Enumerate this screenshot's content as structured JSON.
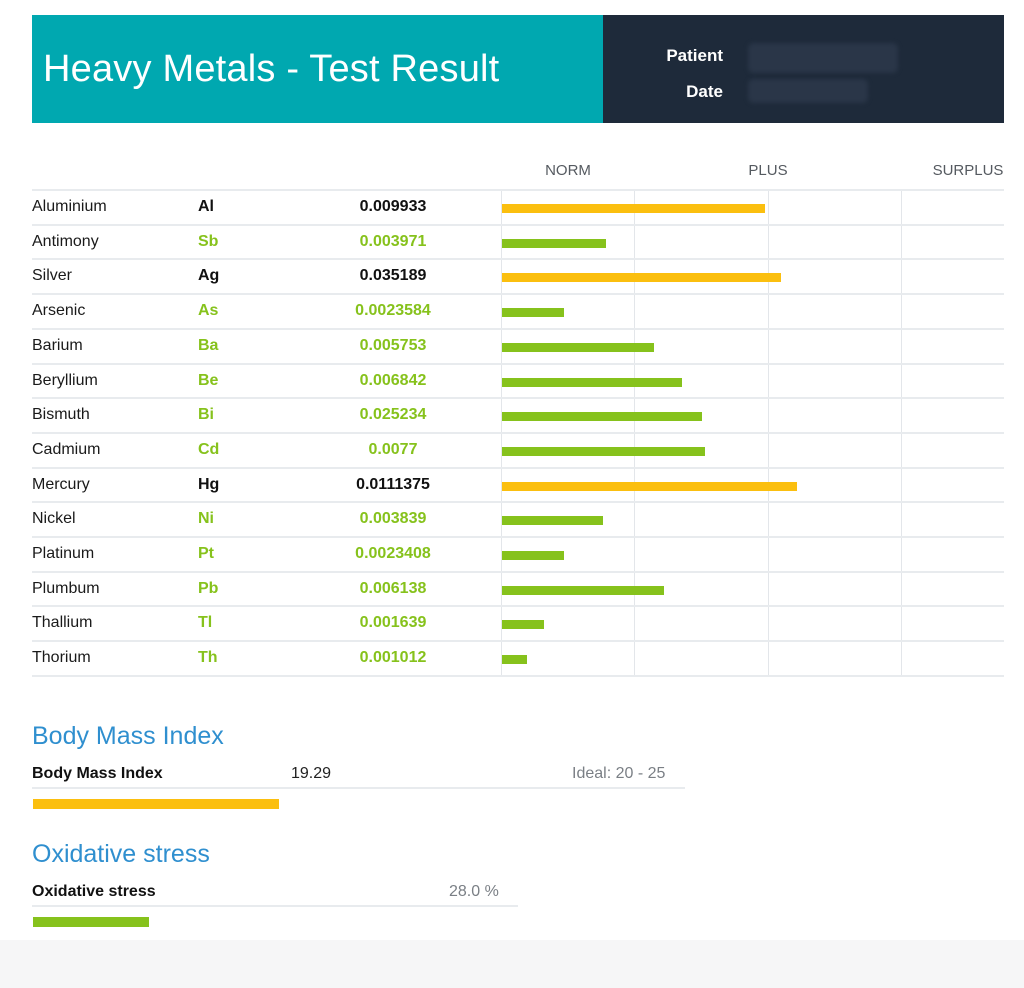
{
  "header": {
    "title": "Heavy Metals - Test Result",
    "patient_label": "Patient",
    "date_label": "Date",
    "colors": {
      "title_band": "#00a8b0",
      "info_band": "#1e2a3a"
    }
  },
  "scale": {
    "norm": "NORM",
    "plus": "PLUS",
    "surplus": "SURPLUS"
  },
  "colors": {
    "elevated": "#fbbf0f",
    "normal": "#86c21c",
    "section_heading": "#2f8fcf"
  },
  "metals": [
    {
      "name": "Aluminium",
      "symbol": "Al",
      "value": "0.009933",
      "status": "elevated",
      "level": 0.395
    },
    {
      "name": "Antimony",
      "symbol": "Sb",
      "value": "0.003971",
      "status": "normal",
      "level": 0.156
    },
    {
      "name": "Silver",
      "symbol": "Ag",
      "value": "0.035189",
      "status": "elevated",
      "level": 0.419
    },
    {
      "name": "Arsenic",
      "symbol": "As",
      "value": "0.0023584",
      "status": "normal",
      "level": 0.093
    },
    {
      "name": "Barium",
      "symbol": "Ba",
      "value": "0.005753",
      "status": "normal",
      "level": 0.228
    },
    {
      "name": "Beryllium",
      "symbol": "Be",
      "value": "0.006842",
      "status": "normal",
      "level": 0.27
    },
    {
      "name": "Bismuth",
      "symbol": "Bi",
      "value": "0.025234",
      "status": "normal",
      "level": 0.3
    },
    {
      "name": "Cadmium",
      "symbol": "Cd",
      "value": "0.0077",
      "status": "normal",
      "level": 0.305
    },
    {
      "name": "Mercury",
      "symbol": "Hg",
      "value": "0.0111375",
      "status": "elevated",
      "level": 0.443
    },
    {
      "name": "Nickel",
      "symbol": "Ni",
      "value": "0.003839",
      "status": "normal",
      "level": 0.152
    },
    {
      "name": "Platinum",
      "symbol": "Pt",
      "value": "0.0023408",
      "status": "normal",
      "level": 0.093
    },
    {
      "name": "Plumbum",
      "symbol": "Pb",
      "value": "0.006138",
      "status": "normal",
      "level": 0.243
    },
    {
      "name": "Thallium",
      "symbol": "Tl",
      "value": "0.001639",
      "status": "normal",
      "level": 0.063
    },
    {
      "name": "Thorium",
      "symbol": "Th",
      "value": "0.001012",
      "status": "normal",
      "level": 0.038
    }
  ],
  "bmi": {
    "heading": "Body Mass Index",
    "label": "Body Mass Index",
    "value": "19.29",
    "ideal": "Ideal: 20 - 25",
    "level": 0.376,
    "status": "elevated"
  },
  "oxidative": {
    "heading": "Oxidative stress",
    "label": "Oxidative stress",
    "value": "28.0 %",
    "level": 0.28,
    "status": "normal"
  }
}
